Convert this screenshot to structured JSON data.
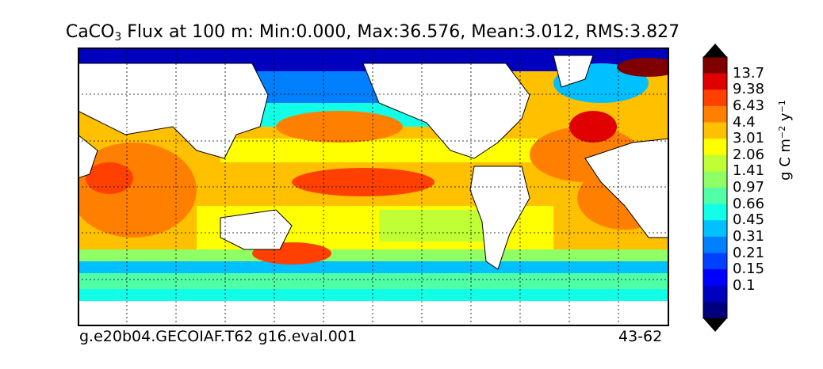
{
  "title": {
    "prefix": "CaCO",
    "subscript": "3",
    "rest": " Flux at 100 m: Min:0.000, Max:36.576, Mean:3.012, RMS:3.827"
  },
  "captions": {
    "left": "g.e20b04.GECOIAF.T62 g16.eval.001",
    "right": "43-62"
  },
  "colorbar": {
    "unit_prefix": "g C m",
    "unit_exp1": "−2",
    "unit_mid": " y",
    "unit_exp2": "−1",
    "ticks": [
      "13.7",
      "9.38",
      "6.43",
      "4.4",
      "3.01",
      "2.06",
      "1.41",
      "0.97",
      "0.66",
      "0.45",
      "0.31",
      "0.21",
      "0.15",
      "0.1"
    ],
    "colors": [
      "#00007f",
      "#0000bf",
      "#0000ff",
      "#0040ff",
      "#0080ff",
      "#00c0ff",
      "#10ffe6",
      "#50ffa6",
      "#90ff66",
      "#c0ff36",
      "#ffff00",
      "#ffc000",
      "#ff8000",
      "#ff4000",
      "#e00000",
      "#7f0000"
    ],
    "over_color": "#000000",
    "under_color": "#000000"
  },
  "map": {
    "land_color": "#ffffff",
    "coast_color": "#000000",
    "grid_style": "dotted"
  }
}
